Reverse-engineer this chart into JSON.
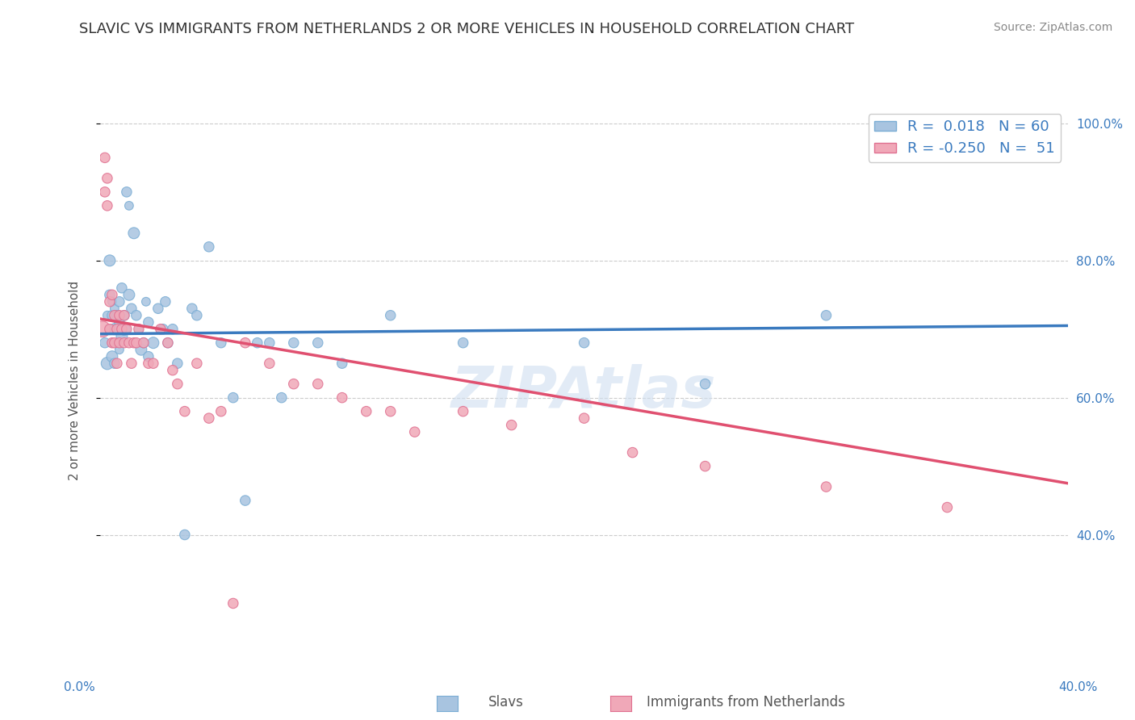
{
  "title": "SLAVIC VS IMMIGRANTS FROM NETHERLANDS 2 OR MORE VEHICLES IN HOUSEHOLD CORRELATION CHART",
  "source_text": "Source: ZipAtlas.com",
  "ylabel": "2 or more Vehicles in Household",
  "xmin": 0.0,
  "xmax": 0.4,
  "ymin": 0.2,
  "ymax": 1.05,
  "yticks": [
    0.4,
    0.6,
    0.8,
    1.0
  ],
  "ytick_labels": [
    "40.0%",
    "60.0%",
    "80.0%",
    "100.0%"
  ],
  "grid_color": "#cccccc",
  "background_color": "#ffffff",
  "watermark_text": "ZIPAtlas",
  "watermark_color": "#d0dff0",
  "slavs_color": "#a8c4e0",
  "slavs_edge_color": "#7aadd4",
  "netherlands_color": "#f0a8b8",
  "netherlands_edge_color": "#e07090",
  "line_slavs_color": "#3a7abf",
  "line_netherlands_color": "#e05070",
  "R_slavs": 0.018,
  "N_slavs": 60,
  "R_netherlands": -0.25,
  "N_netherlands": 51,
  "legend_label_slavs": "Slavs",
  "legend_label_netherlands": "Immigrants from Netherlands",
  "slavs_trend_y0": 0.693,
  "slavs_trend_y1": 0.705,
  "nl_trend_y0": 0.715,
  "nl_trend_y1": 0.475,
  "slavs_x": [
    0.002,
    0.003,
    0.003,
    0.004,
    0.004,
    0.004,
    0.005,
    0.005,
    0.005,
    0.005,
    0.006,
    0.006,
    0.006,
    0.007,
    0.007,
    0.008,
    0.008,
    0.008,
    0.009,
    0.009,
    0.01,
    0.01,
    0.011,
    0.012,
    0.012,
    0.013,
    0.014,
    0.015,
    0.016,
    0.017,
    0.018,
    0.019,
    0.02,
    0.02,
    0.022,
    0.024,
    0.025,
    0.026,
    0.027,
    0.028,
    0.03,
    0.032,
    0.035,
    0.038,
    0.04,
    0.045,
    0.05,
    0.055,
    0.06,
    0.065,
    0.07,
    0.075,
    0.08,
    0.09,
    0.1,
    0.12,
    0.15,
    0.2,
    0.25,
    0.3
  ],
  "slavs_y": [
    0.68,
    0.72,
    0.65,
    0.7,
    0.75,
    0.8,
    0.68,
    0.72,
    0.74,
    0.66,
    0.7,
    0.65,
    0.73,
    0.68,
    0.72,
    0.71,
    0.67,
    0.74,
    0.69,
    0.76,
    0.72,
    0.7,
    0.9,
    0.88,
    0.75,
    0.73,
    0.84,
    0.72,
    0.7,
    0.67,
    0.68,
    0.74,
    0.71,
    0.66,
    0.68,
    0.73,
    0.7,
    0.7,
    0.74,
    0.68,
    0.7,
    0.65,
    0.4,
    0.73,
    0.72,
    0.82,
    0.68,
    0.6,
    0.45,
    0.68,
    0.68,
    0.6,
    0.68,
    0.68,
    0.65,
    0.72,
    0.68,
    0.68,
    0.62,
    0.72
  ],
  "slavs_size": [
    80,
    60,
    120,
    60,
    80,
    100,
    60,
    80,
    60,
    100,
    100,
    80,
    60,
    60,
    80,
    80,
    60,
    80,
    100,
    80,
    80,
    120,
    80,
    60,
    100,
    80,
    100,
    80,
    60,
    100,
    80,
    60,
    80,
    80,
    100,
    80,
    60,
    80,
    80,
    80,
    80,
    80,
    80,
    80,
    80,
    80,
    80,
    80,
    80,
    80,
    80,
    80,
    80,
    80,
    80,
    80,
    80,
    80,
    80,
    80
  ],
  "netherlands_x": [
    0.001,
    0.002,
    0.002,
    0.003,
    0.003,
    0.004,
    0.004,
    0.005,
    0.005,
    0.006,
    0.006,
    0.007,
    0.007,
    0.008,
    0.008,
    0.009,
    0.01,
    0.01,
    0.011,
    0.012,
    0.013,
    0.014,
    0.015,
    0.016,
    0.018,
    0.02,
    0.022,
    0.025,
    0.028,
    0.03,
    0.032,
    0.035,
    0.04,
    0.045,
    0.05,
    0.055,
    0.06,
    0.07,
    0.08,
    0.09,
    0.1,
    0.11,
    0.12,
    0.13,
    0.15,
    0.17,
    0.2,
    0.22,
    0.25,
    0.3,
    0.35
  ],
  "netherlands_y": [
    0.7,
    0.95,
    0.9,
    0.92,
    0.88,
    0.74,
    0.7,
    0.75,
    0.68,
    0.72,
    0.68,
    0.7,
    0.65,
    0.72,
    0.68,
    0.7,
    0.72,
    0.68,
    0.7,
    0.68,
    0.65,
    0.68,
    0.68,
    0.7,
    0.68,
    0.65,
    0.65,
    0.7,
    0.68,
    0.64,
    0.62,
    0.58,
    0.65,
    0.57,
    0.58,
    0.3,
    0.68,
    0.65,
    0.62,
    0.62,
    0.6,
    0.58,
    0.58,
    0.55,
    0.58,
    0.56,
    0.57,
    0.52,
    0.5,
    0.47,
    0.44
  ],
  "netherlands_size": [
    200,
    80,
    80,
    80,
    80,
    80,
    80,
    80,
    80,
    80,
    80,
    80,
    80,
    80,
    80,
    80,
    80,
    80,
    80,
    80,
    80,
    80,
    80,
    80,
    80,
    80,
    80,
    80,
    80,
    80,
    80,
    80,
    80,
    80,
    80,
    80,
    80,
    80,
    80,
    80,
    80,
    80,
    80,
    80,
    80,
    80,
    80,
    80,
    80,
    80,
    80
  ]
}
